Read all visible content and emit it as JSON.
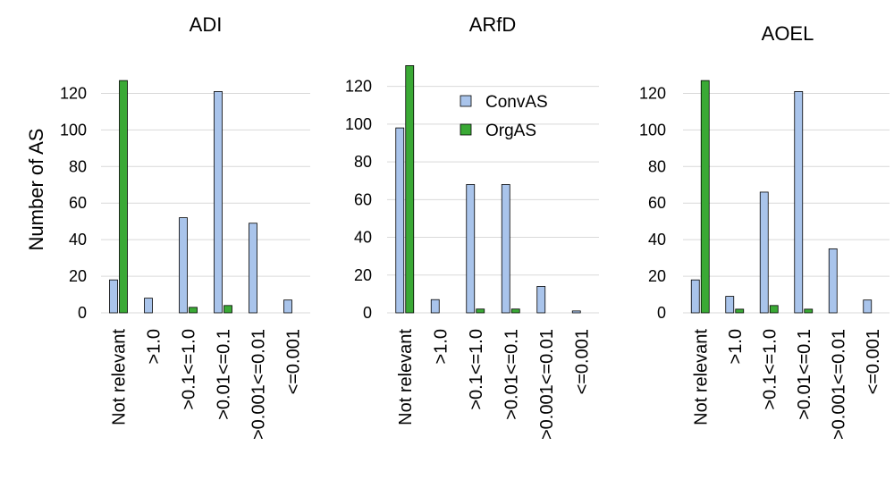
{
  "ylabel": "Number of AS",
  "legend": {
    "position": "top-right of ARfD panel",
    "items": [
      {
        "name": "ConvAS",
        "color": "#a9c4eb"
      },
      {
        "name": "OrgAS",
        "color": "#3aa935"
      }
    ]
  },
  "colors": {
    "ConvAS": "#a9c4eb",
    "OrgAS": "#3aa935",
    "stroke": "#000000",
    "grid": "#d9d9d9"
  },
  "chart_data": [
    {
      "type": "bar",
      "title": "ADI",
      "categories": [
        "Not relevant",
        ">1.0",
        ">0.1<=1.0",
        ">0.01<=0.1",
        ">0.001<=0.01",
        "<=0.001"
      ],
      "series": [
        {
          "name": "ConvAS",
          "values": [
            18,
            8,
            52,
            121,
            49,
            7
          ]
        },
        {
          "name": "OrgAS",
          "values": [
            127,
            0,
            3,
            4,
            0,
            0
          ]
        }
      ],
      "ylabel": "Number of AS",
      "ylim": [
        0,
        130
      ],
      "yticks": [
        0,
        20,
        40,
        60,
        80,
        100,
        120
      ],
      "grid": true
    },
    {
      "type": "bar",
      "title": "ARfD",
      "categories": [
        "Not relevant",
        ">1.0",
        ">0.1<=1.0",
        ">0.01<=0.1",
        ">0.001<=0.01",
        "<=0.001"
      ],
      "series": [
        {
          "name": "ConvAS",
          "values": [
            98,
            7,
            68,
            68,
            14,
            1
          ]
        },
        {
          "name": "OrgAS",
          "values": [
            131,
            0,
            2,
            2,
            0,
            0
          ]
        }
      ],
      "ylim": [
        0,
        135
      ],
      "yticks": [
        0,
        20,
        40,
        60,
        80,
        100,
        120
      ],
      "grid": true
    },
    {
      "type": "bar",
      "title": "AOEL",
      "categories": [
        "Not relevant",
        ">1.0",
        ">0.1<=1.0",
        ">0.01<=0.1",
        ">0.001<=0.01",
        "<=0.001"
      ],
      "series": [
        {
          "name": "ConvAS",
          "values": [
            18,
            9,
            66,
            121,
            35,
            7
          ]
        },
        {
          "name": "OrgAS",
          "values": [
            127,
            2,
            4,
            2,
            0,
            0
          ]
        }
      ],
      "ylim": [
        0,
        130
      ],
      "yticks": [
        0,
        20,
        40,
        60,
        80,
        100,
        120
      ],
      "grid": true
    }
  ]
}
